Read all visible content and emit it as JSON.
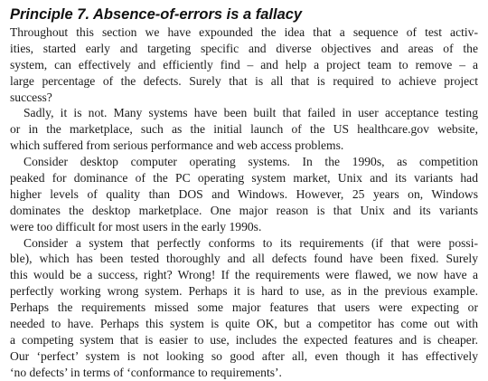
{
  "heading": "Principle 7. Absence-of-errors is a fallacy",
  "paragraphs": [
    {
      "lines": [
        "Throughout this section we have expounded the idea that a sequence of test activ-",
        "ities, started early and targeting specific and diverse objectives and areas of the",
        "system, can effectively and efficiently find – and help a project team to remove – a",
        "large percentage of the defects. Surely that is all that is required to achieve project",
        "success?"
      ]
    },
    {
      "lines": [
        "Sadly, it is not. Many systems have been built that failed in user acceptance testing",
        "or in the marketplace, such as the initial launch of the US healthcare.gov website,",
        "which suffered from serious performance and web access problems."
      ]
    },
    {
      "lines": [
        "Consider desktop computer operating systems. In the 1990s, as competition",
        "peaked for dominance of the PC operating system market, Unix and its variants had",
        "higher levels of quality than DOS and Windows. However, 25 years on, Windows",
        "dominates the desktop marketplace. One major reason is that Unix and its variants",
        "were too difficult for most users in the early 1990s."
      ]
    },
    {
      "lines": [
        "Consider a system that perfectly conforms to its requirements (if that were possi-",
        "ble), which has been tested thoroughly and all defects found have been fixed. Surely",
        "this would be a success, right? Wrong! If the requirements were flawed, we now have a",
        "perfectly working wrong system. Perhaps it is hard to use, as in the previous example.",
        "Perhaps the requirements missed some major features that users were expecting or",
        "needed to have. Perhaps this system is quite OK, but a competitor has come out with",
        "a competing system that is easier to use, includes the expected features and is cheaper.",
        "Our ‘perfect’ system is not looking so good after all, even though it has effectively",
        "‘no defects’ in terms of ‘conformance to requirements’."
      ]
    }
  ]
}
